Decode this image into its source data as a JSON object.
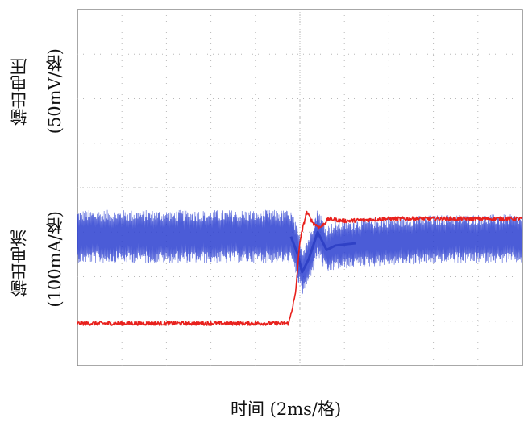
{
  "chart_data": {
    "type": "line",
    "xlabel": "时间 (2ms/格)",
    "divisions": {
      "x": 10,
      "y": 8
    },
    "grid": true,
    "x_range_ms": [
      0,
      20
    ],
    "step_time_ms": 10,
    "series": [
      {
        "name": "输出电压",
        "unit_label": "(50mV/格)",
        "color": "#2b3fd0",
        "style": "ripple band",
        "ripple_band_div_before": [
          2.4,
          3.6
        ],
        "ripple_band_div_after": [
          2.3,
          3.4
        ],
        "transient_min_div": 1.8,
        "points": [
          [
            0,
            2.9
          ],
          [
            4,
            2.9
          ],
          [
            9.6,
            2.9
          ],
          [
            9.9,
            2.5
          ],
          [
            10.1,
            2.1
          ],
          [
            10.4,
            2.4
          ],
          [
            10.8,
            3.0
          ],
          [
            11.2,
            2.6
          ],
          [
            11.6,
            2.7
          ],
          [
            12.5,
            2.75
          ],
          [
            14,
            2.8
          ],
          [
            17,
            2.85
          ],
          [
            20,
            2.85
          ]
        ]
      },
      {
        "name": "输出电流",
        "unit_label": "(100mA/格)",
        "color": "#e8211d",
        "style": "trace",
        "points": [
          [
            0,
            0.95
          ],
          [
            4,
            0.95
          ],
          [
            9.5,
            0.95
          ],
          [
            9.8,
            1.6
          ],
          [
            10.0,
            2.8
          ],
          [
            10.3,
            3.45
          ],
          [
            10.6,
            3.2
          ],
          [
            10.9,
            3.1
          ],
          [
            11.3,
            3.3
          ],
          [
            12.0,
            3.25
          ],
          [
            14,
            3.3
          ],
          [
            17,
            3.3
          ],
          [
            20,
            3.3
          ]
        ]
      }
    ]
  }
}
